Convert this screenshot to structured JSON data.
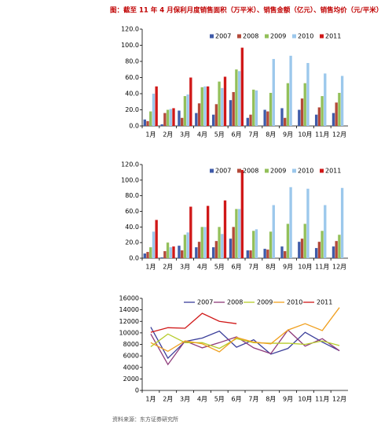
{
  "title": "图：截至 11 年 4 月保利月度销售面积（万平米）、销售金额（亿元）、销售均价（元/平米）",
  "source": "资料来源：东方证券研究所",
  "chart_data": [
    {
      "type": "bar",
      "categories": [
        "1月",
        "2月",
        "3月",
        "4月",
        "5月",
        "6月",
        "7月",
        "8月",
        "9月",
        "10月",
        "11月",
        "12月"
      ],
      "ylim": [
        0,
        120
      ],
      "yticks": [
        {
          "value": 0,
          "label": "0.0"
        },
        {
          "value": 20,
          "label": "20.0"
        },
        {
          "value": 40,
          "label": "40.0"
        },
        {
          "value": 60,
          "label": "60.0"
        },
        {
          "value": 80,
          "label": "80.0"
        },
        {
          "value": 100,
          "label": "100.0"
        },
        {
          "value": 120,
          "label": "120.0"
        }
      ],
      "series": [
        {
          "name": "2007",
          "color": "#3f5ba9",
          "values": [
            8,
            2,
            19,
            16,
            14,
            32,
            10,
            20,
            22,
            20,
            14,
            16
          ]
        },
        {
          "name": "2008",
          "color": "#b34a3a",
          "values": [
            6,
            16,
            10,
            28,
            27,
            42,
            14,
            18,
            10,
            34,
            23,
            29
          ]
        },
        {
          "name": "2009",
          "color": "#93c05a",
          "values": [
            18,
            20,
            37,
            48,
            55,
            70,
            45,
            41,
            53,
            53,
            37,
            41
          ]
        },
        {
          "name": "2010",
          "color": "#9cc8ec",
          "values": [
            40,
            21,
            39,
            49,
            47,
            68,
            44,
            83,
            87,
            78,
            65,
            62
          ]
        },
        {
          "name": "2011",
          "color": "#d01818",
          "values": [
            49,
            22,
            60,
            49,
            61,
            97,
            null,
            null,
            null,
            null,
            null,
            null
          ]
        }
      ]
    },
    {
      "type": "bar",
      "categories": [
        "1月",
        "2月",
        "3月",
        "4月",
        "5月",
        "6月",
        "7月",
        "8月",
        "9月",
        "10月",
        "11月",
        "12月"
      ],
      "ylim": [
        0,
        120
      ],
      "yticks": [
        {
          "value": 0,
          "label": "0.0"
        },
        {
          "value": 20,
          "label": "20.0"
        },
        {
          "value": 40,
          "label": "40.0"
        },
        {
          "value": 60,
          "label": "60.0"
        },
        {
          "value": 80,
          "label": "80.0"
        },
        {
          "value": 100,
          "label": "100.0"
        },
        {
          "value": 120,
          "label": "120.0"
        }
      ],
      "series": [
        {
          "name": "2007",
          "color": "#3f5ba9",
          "values": [
            6,
            1,
            16,
            14,
            14,
            25,
            10,
            12,
            15,
            21,
            13,
            15
          ]
        },
        {
          "name": "2008",
          "color": "#b34a3a",
          "values": [
            8,
            9,
            10,
            21,
            22,
            40,
            10,
            11,
            9,
            25,
            21,
            22
          ]
        },
        {
          "name": "2009",
          "color": "#93c05a",
          "values": [
            14,
            20,
            30,
            40,
            40,
            63,
            35,
            34,
            44,
            44,
            35,
            30
          ]
        },
        {
          "name": "2010",
          "color": "#9cc8ec",
          "values": [
            34,
            14,
            33,
            40,
            31,
            63,
            37,
            68,
            91,
            89,
            68,
            90
          ]
        },
        {
          "name": "2011",
          "color": "#d01818",
          "values": [
            49,
            15,
            66,
            67,
            74,
            113,
            null,
            null,
            null,
            null,
            null,
            null
          ]
        }
      ]
    },
    {
      "type": "line",
      "categories": [
        "1月",
        "2月",
        "3月",
        "4月",
        "5月",
        "6月",
        "7月",
        "8月",
        "9月",
        "10月",
        "11月",
        "12月"
      ],
      "ylim": [
        0,
        16000
      ],
      "yticks": [
        0,
        2000,
        4000,
        6000,
        8000,
        10000,
        12000,
        14000,
        16000
      ],
      "series": [
        {
          "name": "2007",
          "color": "#3b3f9a",
          "values": [
            11000,
            5600,
            8500,
            9100,
            10300,
            7500,
            8800,
            6300,
            7300,
            10100,
            8400,
            6900
          ]
        },
        {
          "name": "2008",
          "color": "#8e3a7a",
          "values": [
            9800,
            4500,
            8600,
            7400,
            8300,
            9300,
            7400,
            6400,
            10500,
            7700,
            9000,
            6900
          ]
        },
        {
          "name": "2009",
          "color": "#b6cc2a",
          "values": [
            7600,
            9800,
            8300,
            8300,
            7300,
            9000,
            8300,
            8200,
            8200,
            8000,
            8600,
            7800
          ]
        },
        {
          "name": "2010",
          "color": "#f0a020",
          "values": [
            8300,
            6800,
            8600,
            8100,
            6700,
            9200,
            8400,
            8100,
            10500,
            11600,
            10400,
            14400
          ]
        },
        {
          "name": "2011",
          "color": "#d01818",
          "values": [
            10100,
            10900,
            10800,
            13400,
            12000,
            11600,
            null,
            null,
            null,
            null,
            null,
            null
          ]
        }
      ]
    }
  ]
}
